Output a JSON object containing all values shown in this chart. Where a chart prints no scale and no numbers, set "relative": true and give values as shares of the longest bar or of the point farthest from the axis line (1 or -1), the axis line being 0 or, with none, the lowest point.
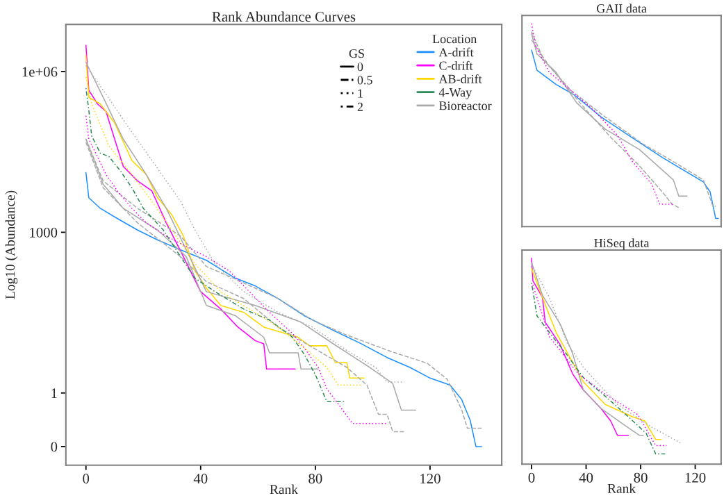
{
  "chart_data": [
    {
      "type": "line",
      "title": "Rank Abundance Curves",
      "xlabel": "Rank",
      "ylabel": "Log10 (Abundance)",
      "log": "y",
      "xlim": [
        -7,
        145
      ],
      "ylim": [
        0.045,
        7600000
      ],
      "xticks": [
        0,
        40,
        80,
        120
      ],
      "yticks": [
        {
          "value": 0.1,
          "label": "0"
        },
        1,
        1000,
        {
          "value": 1000000,
          "label": "1e+06"
        }
      ],
      "grid": false,
      "legend": "top right",
      "legend_title": "Location",
      "annotations": [
        "GS",
        "0",
        "0.5",
        "1",
        "2"
      ],
      "series": [
        {
          "name": "A-drift",
          "color": "#1e90ff",
          "line_style": "solid",
          "x": [
            0,
            1,
            5,
            11,
            18,
            25,
            33,
            42,
            52,
            59,
            67,
            76,
            86,
            96,
            105,
            113,
            120,
            127,
            131,
            134,
            136,
            138
          ],
          "values": [
            13000,
            4400,
            2800,
            1800,
            1100,
            720,
            470,
            300,
            140,
            100,
            58,
            28,
            15,
            8.3,
            4.6,
            3,
            1.9,
            1.4,
            0.76,
            0.31,
            0.1,
            0.1
          ]
        },
        {
          "name": "C-drift",
          "color": "#ff00ff",
          "line_style": "solid",
          "x": [
            0,
            1,
            4,
            7,
            10,
            13,
            18,
            23,
            28,
            34,
            40,
            47,
            53,
            59,
            62,
            63,
            73
          ],
          "values": [
            3100000,
            450000,
            250000,
            180000,
            55000,
            17000,
            9100,
            5900,
            1500,
            350,
            78,
            37,
            17,
            9.5,
            8.3,
            2.8,
            2.8
          ]
        },
        {
          "color": "#ff00ff",
          "line_style": "dotted",
          "x": [
            0,
            1,
            4,
            7,
            11,
            16,
            21,
            28,
            35,
            42,
            50,
            57,
            64,
            72,
            76,
            81,
            84,
            93,
            105
          ],
          "values": [
            150000,
            55000,
            26000,
            12000,
            5900,
            2800,
            1500,
            850,
            540,
            350,
            190,
            78,
            32,
            13,
            7.1,
            3,
            1.2,
            0.27,
            0.27
          ]
        },
        {
          "name": "AB-drift",
          "color": "#ffd700",
          "line_style": "solid",
          "x": [
            0,
            1,
            5,
            10,
            16,
            21,
            25,
            30,
            34,
            38,
            42,
            47,
            55,
            62,
            74,
            78,
            84,
            87,
            91,
            92,
            97
          ],
          "values": [
            2000000,
            330000,
            250000,
            110000,
            22000,
            12000,
            4400,
            2100,
            850,
            190,
            91,
            43,
            32,
            17,
            11,
            7.6,
            7.6,
            3.7,
            3.7,
            1.9,
            1.9
          ]
        },
        {
          "color": "#ffd700",
          "line_style": "dotted",
          "x": [
            0,
            2,
            8,
            16,
            23,
            30,
            38,
            47,
            57,
            67,
            76,
            84,
            88,
            96
          ],
          "values": [
            790000,
            250000,
            41000,
            12000,
            3800,
            1100,
            260,
            78,
            37,
            17,
            7.1,
            3,
            1.4,
            1.4
          ]
        },
        {
          "name": "4-Way",
          "color": "#2e8b57",
          "line_style": "dashdot",
          "x": [
            0,
            1,
            2,
            5,
            8,
            12,
            16,
            20,
            27,
            33,
            38,
            45,
            55,
            64,
            72,
            76,
            80,
            84,
            90
          ],
          "values": [
            490000,
            190000,
            63000,
            30000,
            26000,
            14000,
            6800,
            2800,
            1100,
            350,
            140,
            78,
            37,
            23,
            11,
            5.4,
            2.2,
            0.69,
            0.69
          ]
        },
        {
          "name": "Bioreactor",
          "color": "#a9a9a9",
          "line_style": "solid",
          "x": [
            0,
            6,
            13,
            21,
            28,
            35,
            42,
            59,
            75,
            87,
            99,
            107,
            110,
            115
          ],
          "values": [
            1500000,
            330000,
            55000,
            12000,
            2800,
            470,
            78,
            43,
            21,
            7.8,
            3,
            1.5,
            0.48,
            0.48
          ]
        },
        {
          "color": "#a9a9a9",
          "line_style": "solid",
          "x": [
            0,
            6,
            13,
            25,
            35,
            42,
            52,
            62,
            64,
            74,
            75,
            81
          ],
          "values": [
            55000,
            7900,
            2800,
            1100,
            350,
            43,
            28,
            11,
            5.6,
            5.6,
            2.8,
            2.8
          ]
        },
        {
          "color": "#a9a9a9",
          "line_style": "dashed",
          "x": [
            0,
            6,
            18,
            33,
            42,
            50,
            67,
            79,
            91,
            107,
            119,
            126,
            131,
            133,
            138
          ],
          "values": [
            55000,
            9100,
            2800,
            850,
            230,
            150,
            58,
            23,
            12,
            5.8,
            3.6,
            1.8,
            0.49,
            0.22,
            0.22
          ]
        },
        {
          "color": "#a9a9a9",
          "line_style": "dashed",
          "x": [
            0,
            6,
            18,
            33,
            42,
            55,
            67,
            79,
            91,
            98,
            102,
            105,
            107,
            111
          ],
          "values": [
            48000,
            6800,
            1500,
            350,
            120,
            58,
            17,
            7.1,
            3,
            1.4,
            0.4,
            0.4,
            0.19,
            0.19
          ]
        },
        {
          "color": "#a9a9a9",
          "line_style": "dotted",
          "x": [
            0,
            6,
            16,
            23,
            28,
            33,
            38,
            45,
            55,
            67,
            79,
            91,
            101,
            105,
            111
          ],
          "values": [
            1300000,
            450000,
            74000,
            22000,
            9100,
            3800,
            1100,
            260,
            78,
            32,
            17,
            6.2,
            3,
            1.6,
            1.6
          ]
        }
      ]
    },
    {
      "type": "line",
      "title": "GAII data",
      "relative": true,
      "xlim": [
        -7,
        139
      ],
      "tick_labels": false,
      "grid": false,
      "series": [
        {
          "color": "#1e90ff",
          "line_style": "solid",
          "x": [
            0,
            4,
            18,
            31,
            51,
            71,
            96,
            126,
            131,
            135,
            137
          ],
          "values": [
            0.87,
            0.77,
            0.7,
            0.65,
            0.54,
            0.45,
            0.34,
            0.22,
            0.17,
            0.04,
            0.04
          ]
        },
        {
          "color": "#ff00ff",
          "line_style": "dotted",
          "x": [
            0,
            3,
            13,
            29,
            46,
            63,
            74,
            88,
            94,
            104
          ],
          "values": [
            1.0,
            0.89,
            0.76,
            0.67,
            0.57,
            0.45,
            0.32,
            0.21,
            0.11,
            0.11
          ]
        },
        {
          "color": "#a9a9a9",
          "line_style": "solid",
          "x": [
            0,
            4,
            18,
            33,
            54,
            79,
            104,
            108,
            114
          ],
          "values": [
            0.95,
            0.85,
            0.76,
            0.61,
            0.48,
            0.38,
            0.23,
            0.15,
            0.15
          ]
        },
        {
          "color": "#a9a9a9",
          "line_style": "dashed",
          "x": [
            0,
            9,
            29,
            54,
            81,
            104,
            126,
            133,
            135
          ],
          "values": [
            0.96,
            0.82,
            0.67,
            0.54,
            0.41,
            0.32,
            0.23,
            0.1,
            0.1
          ]
        },
        {
          "color": "#a9a9a9",
          "line_style": "dashed",
          "x": [
            0,
            13,
            38,
            58,
            79,
            96,
            103,
            109
          ],
          "values": [
            0.92,
            0.79,
            0.59,
            0.44,
            0.3,
            0.17,
            0.11,
            0.09
          ]
        }
      ]
    },
    {
      "type": "line",
      "title": "HiSeq data",
      "relative": true,
      "xlabel": "Rank",
      "xlim": [
        -7,
        139
      ],
      "xticks": [
        0,
        40,
        80,
        120
      ],
      "tick_labels": "x",
      "grid": false,
      "series": [
        {
          "color": "#ff00ff",
          "line_style": "solid",
          "x": [
            0,
            1,
            8,
            10,
            21,
            30,
            38,
            51,
            58,
            63,
            71
          ],
          "values": [
            1.0,
            0.89,
            0.81,
            0.69,
            0.58,
            0.44,
            0.36,
            0.27,
            0.21,
            0.14,
            0.14
          ]
        },
        {
          "color": "#ff00ff",
          "line_style": "dotted",
          "x": [
            1,
            13,
            34,
            54,
            78,
            91,
            99
          ],
          "values": [
            0.87,
            0.62,
            0.44,
            0.34,
            0.24,
            0.09,
            0.09
          ]
        },
        {
          "color": "#ffd700",
          "line_style": "solid",
          "x": [
            0,
            8,
            18,
            28,
            38,
            54,
            74,
            83,
            91,
            95
          ],
          "values": [
            0.95,
            0.81,
            0.64,
            0.52,
            0.4,
            0.29,
            0.23,
            0.21,
            0.12,
            0.12
          ]
        },
        {
          "color": "#2e8b57",
          "line_style": "dashdot",
          "x": [
            0,
            4,
            13,
            25,
            38,
            54,
            71,
            84,
            91,
            98
          ],
          "values": [
            0.88,
            0.72,
            0.64,
            0.54,
            0.42,
            0.33,
            0.23,
            0.15,
            0.05,
            0.05
          ]
        },
        {
          "color": "#a9a9a9",
          "line_style": "solid",
          "x": [
            0,
            8,
            21,
            30,
            38,
            51,
            68,
            79,
            82
          ],
          "values": [
            0.98,
            0.82,
            0.68,
            0.54,
            0.36,
            0.27,
            0.19,
            0.14,
            0.14
          ]
        },
        {
          "color": "#a9a9a9",
          "line_style": "dotted",
          "x": [
            0,
            13,
            26,
            38,
            63,
            88,
            110
          ],
          "values": [
            0.97,
            0.81,
            0.59,
            0.47,
            0.29,
            0.18,
            0.1
          ]
        }
      ]
    }
  ]
}
